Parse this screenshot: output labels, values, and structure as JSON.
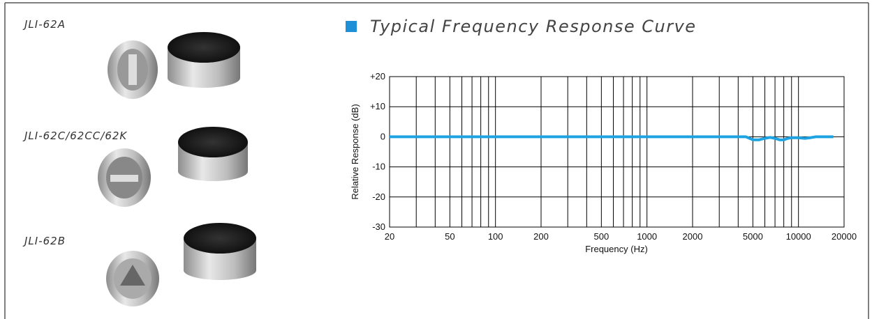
{
  "products": [
    {
      "name": "JLI-62A"
    },
    {
      "name": "JLI-62C/62CC/62K"
    },
    {
      "name": "JLI-62B"
    }
  ],
  "chart_data": {
    "type": "line",
    "title": "Typical Frequency Response Curve",
    "x_label": "Frequency (Hz)",
    "y_label": "Relative Response (dB)",
    "x_scale": "log",
    "grid": true,
    "xlim": [
      20,
      20000
    ],
    "xticks": [
      20,
      50,
      100,
      200,
      500,
      1000,
      2000,
      5000,
      10000,
      20000
    ],
    "xminor": [
      30,
      40,
      60,
      70,
      80,
      90,
      300,
      400,
      600,
      700,
      800,
      900,
      3000,
      4000,
      6000,
      7000,
      8000,
      9000
    ],
    "ylim": [
      -30,
      20
    ],
    "yticks": [
      {
        "value": 20,
        "label": "+20"
      },
      {
        "value": 10,
        "label": "+10"
      },
      0,
      -10,
      -20,
      -30
    ],
    "series": [
      {
        "color": "#1ea3e2",
        "x": [
          20,
          4500,
          5000,
          5500,
          6000,
          6500,
          7000,
          7500,
          8000,
          8500,
          9000,
          10000,
          11000,
          12000,
          13000,
          17000
        ],
        "values": [
          0,
          0,
          -1,
          -1,
          -0.5,
          -0.2,
          -0.5,
          -1,
          -1,
          -0.5,
          -0.3,
          -0.3,
          -0.5,
          -0.3,
          0,
          0
        ]
      }
    ]
  }
}
